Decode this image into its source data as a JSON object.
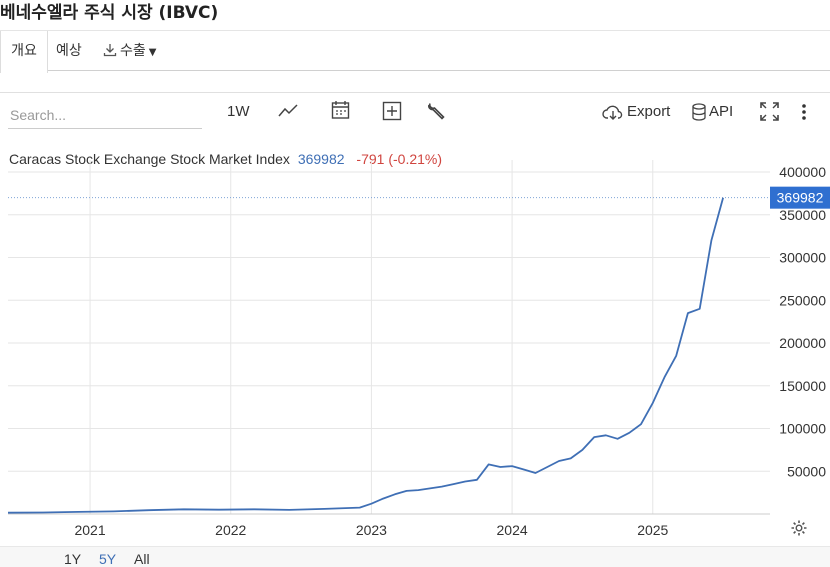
{
  "page": {
    "title": "베네수엘라 주식 시장 (IBVC)"
  },
  "tabs": [
    {
      "label": "개요",
      "active": true
    },
    {
      "label": "예상",
      "active": false
    },
    {
      "label": "수출",
      "active": false
    }
  ],
  "toolbar": {
    "search_placeholder": "Search...",
    "interval_label": "1W",
    "export_label": "Export",
    "api_label": "API",
    "icons": [
      "line-chart-icon",
      "calendar-icon",
      "add-compare-icon",
      "wrench-icon",
      "cloud-download-icon",
      "database-icon",
      "fullscreen-icon",
      "more-vertical-icon"
    ]
  },
  "quote": {
    "name": "Caracas Stock Exchange Stock Market Index",
    "price": "369982",
    "change": "-791 (-0.21%)"
  },
  "range_buttons": [
    {
      "label": "1Y",
      "active": false
    },
    {
      "label": "5Y",
      "active": true
    },
    {
      "label": "All",
      "active": false
    }
  ],
  "colors": {
    "line": "#3f6fb5",
    "negative": "#d0453f",
    "grid": "#e6e6e6",
    "price_tag": "#2f6fd0"
  },
  "chart_data": {
    "type": "line",
    "series": [
      {
        "x": [
          "2020-06",
          "2020-09",
          "2020-12",
          "2021-03",
          "2021-06",
          "2021-09",
          "2021-12",
          "2022-03",
          "2022-06",
          "2022-09",
          "2022-12",
          "2023-01",
          "2023-02",
          "2023-03",
          "2023-04",
          "2023-05",
          "2023-06",
          "2023-07",
          "2023-08",
          "2023-09",
          "2023-10",
          "2023-11",
          "2023-12",
          "2024-01",
          "2024-02",
          "2024-03",
          "2024-04",
          "2024-05",
          "2024-06",
          "2024-07",
          "2024-08",
          "2024-09",
          "2024-10",
          "2024-11",
          "2024-12",
          "2025-01",
          "2025-02",
          "2025-03",
          "2025-04",
          "2025-05",
          "2025-06",
          "2025-07"
        ],
        "values": [
          1500,
          1800,
          2500,
          3000,
          4500,
          5500,
          5000,
          5500,
          4800,
          6000,
          7500,
          12000,
          18000,
          23000,
          27000,
          28000,
          30000,
          32000,
          35000,
          38000,
          40000,
          58000,
          55000,
          56000,
          52000,
          48000,
          55000,
          62000,
          65000,
          75000,
          90000,
          92000,
          88000,
          95000,
          105000,
          130000,
          160000,
          185000,
          235000,
          240000,
          320000,
          369982
        ]
      }
    ],
    "x_ticks": [
      "2021",
      "2022",
      "2023",
      "2024",
      "2025"
    ],
    "y_ticks": [
      50000,
      100000,
      150000,
      200000,
      250000,
      300000,
      350000,
      400000
    ],
    "ylim": [
      0,
      400000
    ],
    "xlim": [
      "2020-06",
      "2025-11"
    ],
    "last_value_label": "369982",
    "grid": true
  }
}
